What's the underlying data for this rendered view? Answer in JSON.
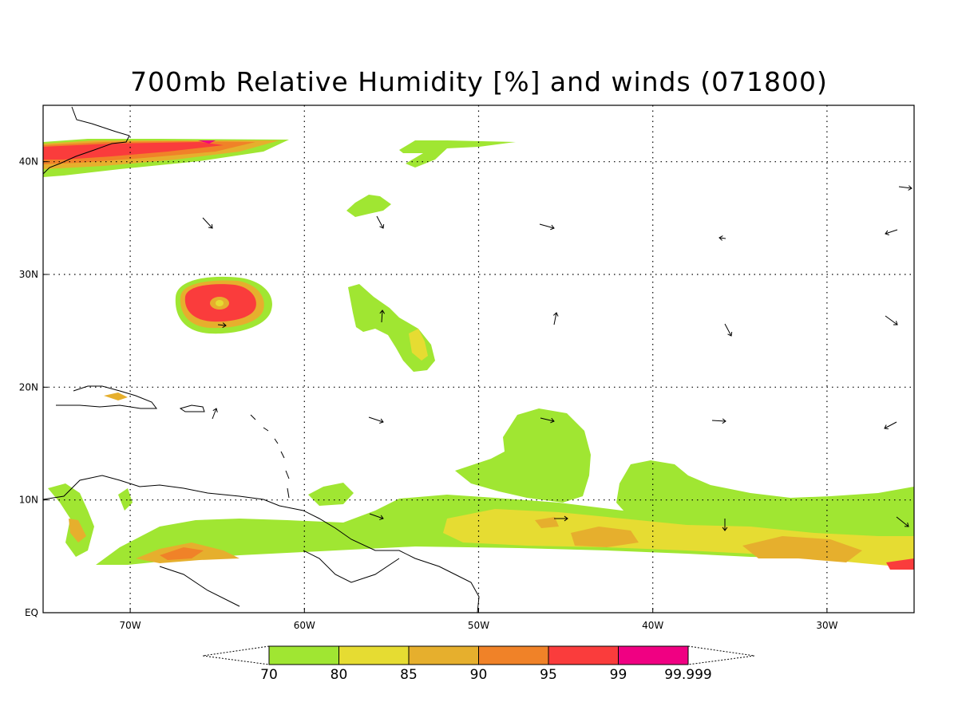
{
  "title": "700mb Relative Humidity [%] and winds (071800)",
  "map": {
    "lon_min": -75,
    "lon_max": -25,
    "lat_min": 0,
    "lat_max": 45,
    "lon_ticks": [
      {
        "value": -70,
        "label": "70W"
      },
      {
        "value": -60,
        "label": "60W"
      },
      {
        "value": -50,
        "label": "50W"
      },
      {
        "value": -40,
        "label": "40W"
      },
      {
        "value": -30,
        "label": "30W"
      }
    ],
    "lat_ticks": [
      {
        "value": 0,
        "label": "EQ"
      },
      {
        "value": 10,
        "label": "10N"
      },
      {
        "value": 20,
        "label": "20N"
      },
      {
        "value": 30,
        "label": "30N"
      },
      {
        "value": 40,
        "label": "40N"
      }
    ],
    "grid": true
  },
  "colorbar": {
    "labels": [
      "70",
      "80",
      "85",
      "90",
      "95",
      "99",
      "99.999"
    ],
    "colors": [
      "#a0e632",
      "#e6dc32",
      "#e6af2d",
      "#f08228",
      "#fa3c3c",
      "#f00082"
    ]
  }
}
